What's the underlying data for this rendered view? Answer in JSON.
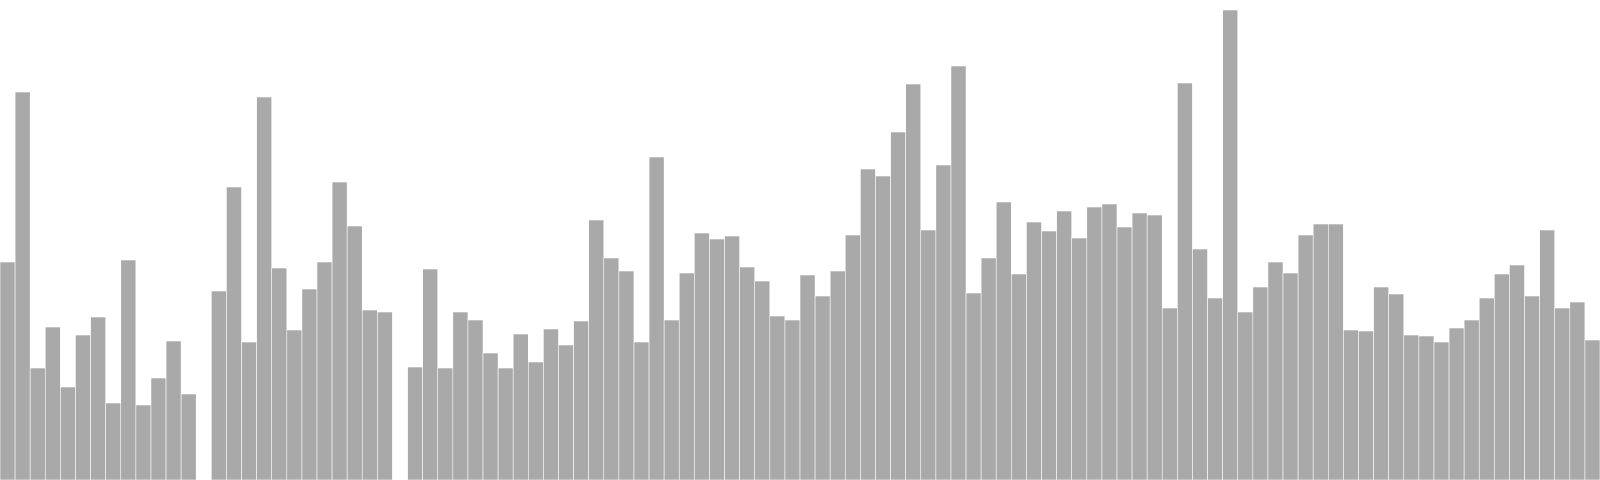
{
  "chart_data": {
    "type": "bar",
    "title": "",
    "xlabel": "",
    "ylabel": "",
    "grid": false,
    "legend": "none",
    "bar_color": "#a9a9a9",
    "bar_edge_color": "#ffffff",
    "ylim": [
      0,
      480
    ],
    "values": [
      218,
      388,
      112,
      153,
      93,
      145,
      163,
      77,
      220,
      75,
      102,
      139,
      86,
      0,
      189,
      293,
      138,
      383,
      212,
      150,
      191,
      218,
      298,
      254,
      170,
      168,
      0,
      113,
      211,
      112,
      168,
      160,
      127,
      112,
      146,
      118,
      151,
      135,
      159,
      260,
      222,
      209,
      138,
      323,
      160,
      207,
      247,
      241,
      244,
      213,
      199,
      164,
      160,
      205,
      184,
      209,
      245,
      311,
      304,
      348,
      396,
      250,
      315,
      414,
      187,
      222,
      278,
      206,
      258,
      249,
      269,
      242,
      273,
      276,
      253,
      267,
      265,
      172,
      397,
      231,
      182,
      470,
      168,
      193,
      218,
      207,
      245,
      256,
      256,
      150,
      149,
      193,
      186,
      145,
      144,
      138,
      152,
      160,
      182,
      206,
      215,
      184,
      250,
      172,
      178,
      140
    ]
  }
}
